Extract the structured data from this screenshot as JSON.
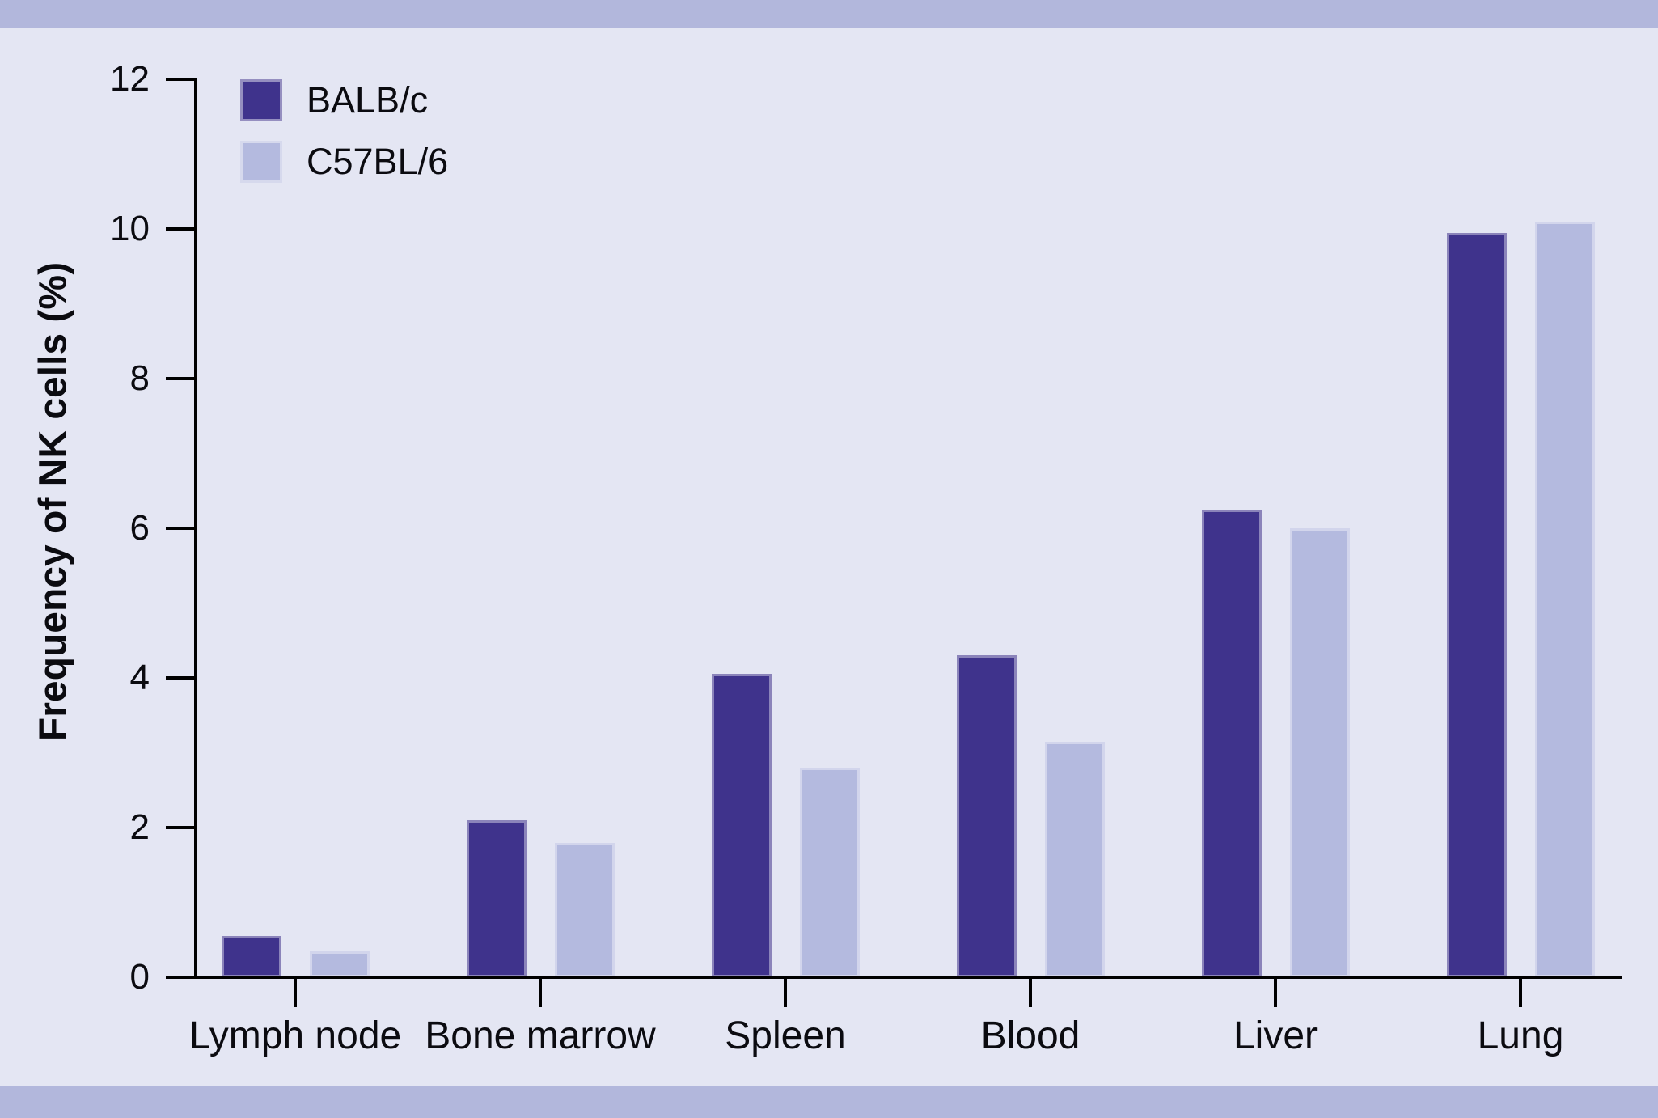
{
  "figure": {
    "background_color": "#E4E6F3",
    "band_color": "#B2B7DC",
    "axis_color": "#000000",
    "text_color": "#0b0b10"
  },
  "legend": {
    "entries": [
      {
        "label": "BALB/c",
        "color": "#3F338C"
      },
      {
        "label": "C57BL/6",
        "color": "#B4BADF"
      }
    ]
  },
  "chart_data": {
    "type": "bar",
    "title": "",
    "xlabel": "",
    "ylabel": "Frequency of NK cells (%)",
    "categories": [
      "Lymph node",
      "Bone marrow",
      "Spleen",
      "Blood",
      "Liver",
      "Lung"
    ],
    "series": [
      {
        "name": "BALB/c",
        "color": "#3F338C",
        "values": [
          0.55,
          2.1,
          4.05,
          4.3,
          6.25,
          9.95
        ]
      },
      {
        "name": "C57BL/6",
        "color": "#B4BADF",
        "values": [
          0.35,
          1.8,
          2.8,
          3.15,
          6.0,
          10.1
        ]
      }
    ],
    "ylim": [
      0,
      12
    ],
    "yticks": [
      0,
      2,
      4,
      6,
      8,
      10,
      12
    ],
    "grid": false,
    "legend_position": "top-left"
  }
}
